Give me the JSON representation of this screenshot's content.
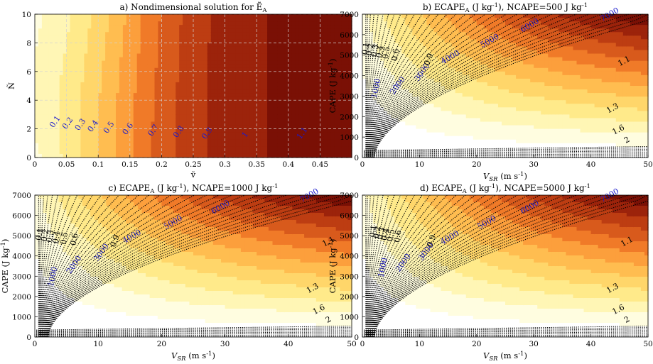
{
  "colors": {
    "bands": [
      "#ffffff",
      "#fffde0",
      "#fff6b5",
      "#ffea8a",
      "#ffd66a",
      "#ffbd50",
      "#fc9f3c",
      "#f07a28",
      "#d85a1c",
      "#bd3d12",
      "#9c230b",
      "#7a1005",
      "#5c0500"
    ],
    "label_blue": "#1a1acc",
    "grid": "#d2d2d2"
  },
  "chart_data": [
    {
      "panel": "a",
      "type": "heatmap",
      "title": "a) Nondimensional solution for Ẽ",
      "title_sub": "A",
      "xlabel": "ṽ",
      "ylabel": "Ñ",
      "xlim": [
        0,
        0.5
      ],
      "ylim": [
        0,
        10
      ],
      "xticks": [
        0,
        0.05,
        0.1,
        0.15,
        0.2,
        0.25,
        0.3,
        0.35,
        0.4,
        0.45
      ],
      "xtick_labels": [
        "0",
        "0.05",
        "0.1",
        "0.15",
        "0.2",
        "0.25",
        "0.3",
        "0.35",
        "0.4",
        "0.45"
      ],
      "yticks": [
        0,
        2,
        4,
        6,
        8,
        10
      ],
      "ytick_labels": [
        "0",
        "2",
        "4",
        "6",
        "8",
        "10"
      ],
      "grid": true,
      "contour_levels": [
        0.1,
        0.2,
        0.3,
        0.4,
        0.5,
        0.6,
        0.7,
        0.8,
        0.9,
        1.0,
        1.1
      ],
      "contour_label_points": [
        {
          "text": "0.1",
          "x": 0.035,
          "y": 2.4
        },
        {
          "text": "0.2",
          "x": 0.055,
          "y": 2.3
        },
        {
          "text": "0.3",
          "x": 0.075,
          "y": 2.2
        },
        {
          "text": "0.4",
          "x": 0.095,
          "y": 2.1
        },
        {
          "text": "0.5",
          "x": 0.12,
          "y": 2.0
        },
        {
          "text": "0.6",
          "x": 0.15,
          "y": 1.9
        },
        {
          "text": "0.7",
          "x": 0.19,
          "y": 1.8
        },
        {
          "text": "0.8",
          "x": 0.23,
          "y": 1.7
        },
        {
          "text": "0.9",
          "x": 0.275,
          "y": 1.6
        },
        {
          "text": "1",
          "x": 0.335,
          "y": 1.5
        },
        {
          "text": "1.1",
          "x": 0.425,
          "y": 1.6
        }
      ]
    },
    {
      "panel": "b",
      "type": "heatmap",
      "title_pre": "b) ECAPE",
      "title_sub": "A",
      "title_post": " (J kg",
      "title_sup": "-1",
      "title_end": "), NCAPE=500 J kg",
      "title_end_sup": "-1",
      "xlabel": "V",
      "xlabel_sub": "SR",
      "xlabel_unit": " (m s",
      "xlabel_unit_sup": "-1",
      "xlabel_close": ")",
      "ylabel": "CAPE (J kg",
      "ylabel_sup": "-1",
      "ylabel_close": ")",
      "ncape": 500,
      "xlim": [
        0,
        50
      ],
      "ylim": [
        0,
        7000
      ],
      "xticks": [
        0,
        10,
        20,
        30,
        40,
        50
      ],
      "xtick_labels": [
        "0",
        "10",
        "20",
        "30",
        "40",
        "50"
      ],
      "yticks": [
        0,
        1000,
        2000,
        3000,
        4000,
        5000,
        6000,
        7000
      ],
      "ytick_labels": [
        "0",
        "1000",
        "2000",
        "3000",
        "4000",
        "5000",
        "6000",
        "7000"
      ],
      "filled_levels": [
        500,
        1000,
        1500,
        2000,
        2500,
        3000,
        3500,
        4000,
        4500,
        5000,
        5500,
        6000,
        6500,
        7000
      ],
      "ecape_labels": [
        {
          "text": "1000",
          "x": 2.8,
          "y": 3350
        },
        {
          "text": "2000",
          "x": 6.5,
          "y": 3450
        },
        {
          "text": "3000",
          "x": 10.8,
          "y": 4100
        },
        {
          "text": "4000",
          "x": 15.6,
          "y": 4800
        },
        {
          "text": "5000",
          "x": 22.5,
          "y": 5600
        },
        {
          "text": "6000",
          "x": 29.5,
          "y": 6350
        },
        {
          "text": "7000",
          "x": 43.5,
          "y": 6880
        }
      ],
      "ratio_levels": [
        0.1,
        0.2,
        0.3,
        0.4,
        0.5,
        0.6,
        0.9,
        1.1,
        1.3,
        1.6,
        2
      ],
      "ratio_labels": [
        {
          "text": "0.1",
          "x": 1.0,
          "y": 5300
        },
        {
          "text": "0.2",
          "x": 1.8,
          "y": 5250
        },
        {
          "text": "0.3",
          "x": 2.6,
          "y": 5200
        },
        {
          "text": "0.4",
          "x": 3.5,
          "y": 5150
        },
        {
          "text": "0.5",
          "x": 4.6,
          "y": 5100
        },
        {
          "text": "0.6",
          "x": 6.2,
          "y": 5000
        },
        {
          "text": "0.9",
          "x": 12.0,
          "y": 4750
        },
        {
          "text": "1.1",
          "x": 46.0,
          "y": 4600
        },
        {
          "text": "1.3",
          "x": 44.0,
          "y": 2300
        },
        {
          "text": "1.6",
          "x": 45.0,
          "y": 1250
        },
        {
          "text": "2",
          "x": 46.5,
          "y": 750
        }
      ]
    },
    {
      "panel": "c",
      "type": "heatmap",
      "title_pre": "c) ECAPE",
      "title_sub": "A",
      "title_post": " (J kg",
      "title_sup": "-1",
      "title_end": "), NCAPE=1000 J kg",
      "title_end_sup": "-1",
      "xlabel": "V",
      "xlabel_sub": "SR",
      "xlabel_unit": " (m s",
      "xlabel_unit_sup": "-1",
      "xlabel_close": ")",
      "ylabel": "CAPE (J kg",
      "ylabel_sup": "-1",
      "ylabel_close": ")",
      "ncape": 1000,
      "xlim": [
        0,
        50
      ],
      "ylim": [
        0,
        7000
      ],
      "xticks": [
        0,
        10,
        20,
        30,
        40,
        50
      ],
      "xtick_labels": [
        "0",
        "10",
        "20",
        "30",
        "40",
        "50"
      ],
      "yticks": [
        0,
        1000,
        2000,
        3000,
        4000,
        5000,
        6000,
        7000
      ],
      "ytick_labels": [
        "0",
        "1000",
        "2000",
        "3000",
        "4000",
        "5000",
        "6000",
        "7000"
      ],
      "filled_levels": [
        500,
        1000,
        1500,
        2000,
        2500,
        3000,
        3500,
        4000,
        4500,
        5000,
        5500,
        6000,
        6500,
        7000
      ],
      "ecape_labels": [
        {
          "text": "1000",
          "x": 3.2,
          "y": 2950
        },
        {
          "text": "2000",
          "x": 6.5,
          "y": 3500
        },
        {
          "text": "3000",
          "x": 10.8,
          "y": 4100
        },
        {
          "text": "4000",
          "x": 15.5,
          "y": 4850
        },
        {
          "text": "5000",
          "x": 22.0,
          "y": 5550
        },
        {
          "text": "6000",
          "x": 29.5,
          "y": 6300
        },
        {
          "text": "7000",
          "x": 43.5,
          "y": 6880
        }
      ],
      "ratio_levels": [
        0.1,
        0.2,
        0.3,
        0.4,
        0.5,
        0.6,
        0.9,
        1.1,
        1.3,
        1.6,
        2
      ],
      "ratio_labels": [
        {
          "text": "0.1",
          "x": 1.1,
          "y": 5050
        },
        {
          "text": "0.2",
          "x": 2.0,
          "y": 5000
        },
        {
          "text": "0.3",
          "x": 2.8,
          "y": 4950
        },
        {
          "text": "0.4",
          "x": 3.8,
          "y": 4900
        },
        {
          "text": "0.5",
          "x": 5.0,
          "y": 4850
        },
        {
          "text": "0.6",
          "x": 6.6,
          "y": 4800
        },
        {
          "text": "0.9",
          "x": 13.0,
          "y": 4700
        },
        {
          "text": "1.1",
          "x": 46.5,
          "y": 4600
        },
        {
          "text": "1.3",
          "x": 44.0,
          "y": 2300
        },
        {
          "text": "1.6",
          "x": 45.0,
          "y": 1250
        },
        {
          "text": "2",
          "x": 46.5,
          "y": 750
        }
      ]
    },
    {
      "panel": "d",
      "type": "heatmap",
      "title_pre": "d) ECAPE",
      "title_sub": "A",
      "title_post": " (J kg",
      "title_sup": "-1",
      "title_end": "), NCAPE=5000 J kg",
      "title_end_sup": "-1",
      "xlabel": "V",
      "xlabel_sub": "SR",
      "xlabel_unit": " (m s",
      "xlabel_unit_sup": "-1",
      "xlabel_close": ")",
      "ylabel": "CAPE (J kg",
      "ylabel_sup": "-1",
      "ylabel_close": ")",
      "ncape": 5000,
      "xlim": [
        0,
        50
      ],
      "ylim": [
        0,
        7000
      ],
      "xticks": [
        0,
        10,
        20,
        30,
        40,
        50
      ],
      "xtick_labels": [
        "0",
        "10",
        "20",
        "30",
        "40",
        "50"
      ],
      "yticks": [
        0,
        1000,
        2000,
        3000,
        4000,
        5000,
        6000,
        7000
      ],
      "ytick_labels": [
        "0",
        "1000",
        "2000",
        "3000",
        "4000",
        "5000",
        "6000",
        "7000"
      ],
      "filled_levels": [
        500,
        1000,
        1500,
        2000,
        2500,
        3000,
        3500,
        4000,
        4500,
        5000,
        5500,
        6000,
        6500,
        7000
      ],
      "ecape_labels": [
        {
          "text": "1000",
          "x": 4.0,
          "y": 3400
        },
        {
          "text": "2000",
          "x": 7.5,
          "y": 3600
        },
        {
          "text": "3000",
          "x": 11.5,
          "y": 4150
        },
        {
          "text": "4000",
          "x": 15.5,
          "y": 4800
        },
        {
          "text": "5000",
          "x": 22.0,
          "y": 5550
        },
        {
          "text": "6000",
          "x": 29.5,
          "y": 6300
        },
        {
          "text": "7000",
          "x": 43.5,
          "y": 6880
        }
      ],
      "ratio_levels": [
        0.1,
        0.2,
        0.3,
        0.4,
        0.5,
        0.6,
        0.9,
        1.1,
        1.3,
        1.6,
        2
      ],
      "ratio_labels": [
        {
          "text": "0.1",
          "x": 2.3,
          "y": 5200
        },
        {
          "text": "0.2",
          "x": 3.0,
          "y": 5150
        },
        {
          "text": "0.3",
          "x": 3.7,
          "y": 5100
        },
        {
          "text": "0.4",
          "x": 4.4,
          "y": 5050
        },
        {
          "text": "0.5",
          "x": 5.4,
          "y": 5000
        },
        {
          "text": "0.6",
          "x": 6.6,
          "y": 4950
        },
        {
          "text": "0.9",
          "x": 12.5,
          "y": 4700
        },
        {
          "text": "1.1",
          "x": 46.5,
          "y": 4600
        },
        {
          "text": "1.3",
          "x": 44.0,
          "y": 2300
        },
        {
          "text": "1.6",
          "x": 45.0,
          "y": 1250
        },
        {
          "text": "2",
          "x": 46.5,
          "y": 750
        }
      ]
    }
  ]
}
